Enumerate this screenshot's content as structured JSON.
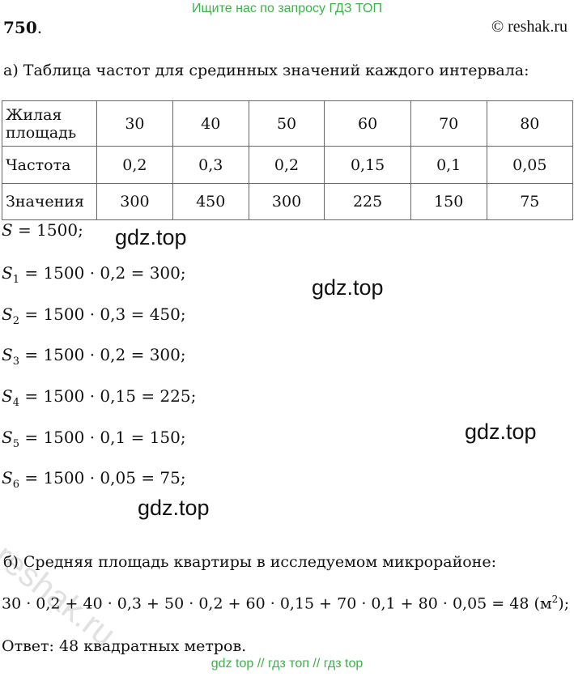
{
  "header": {
    "banner": "Ищите нас по запросу ГДЗ ТОП",
    "problem_number": "750",
    "site": "© reshak.ru"
  },
  "section_a": {
    "title": "а) Таблица частот для срединных значений каждого интервала:",
    "table": {
      "row_headers": [
        "Жилая площадь",
        "Частота",
        "Значения"
      ],
      "areas": [
        "30",
        "40",
        "50",
        "60",
        "70",
        "80"
      ],
      "frequencies": [
        "0,2",
        "0,3",
        "0,2",
        "0,15",
        "0,1",
        "0,05"
      ],
      "values": [
        "300",
        "450",
        "300",
        "225",
        "150",
        "75"
      ]
    }
  },
  "equations": [
    {
      "var": "S",
      "sub": "",
      "rhs": " = 1500;"
    },
    {
      "var": "S",
      "sub": "1",
      "rhs": " = 1500 · 0,2 = 300;"
    },
    {
      "var": "S",
      "sub": "2",
      "rhs": " = 1500 · 0,3 = 450;"
    },
    {
      "var": "S",
      "sub": "3",
      "rhs": " = 1500 · 0,2 = 300;"
    },
    {
      "var": "S",
      "sub": "4",
      "rhs": " = 1500 · 0,15 = 225;"
    },
    {
      "var": "S",
      "sub": "5",
      "rhs": " = 1500 · 0,1 = 150;"
    },
    {
      "var": "S",
      "sub": "6",
      "rhs": " = 1500 · 0,05 = 75;"
    }
  ],
  "watermarks": [
    "gdz.top",
    "gdz.top",
    "gdz.top",
    "gdz.top"
  ],
  "stamp": "reshak.ru",
  "section_b": {
    "title": "б) Средняя площадь квартиры в исследуемом микрорайоне:",
    "formula": "30 · 0,2 + 40 · 0,3 + 50 · 0,2 + 60 · 0,15 + 70 · 0,1 + 80 · 0,05 = 48 (м",
    "formula_sup": "2",
    "formula_end": ");",
    "answer": "Ответ:  48 квадратных метров."
  },
  "footer": "gdz top  //  гдз топ  //  гдз top"
}
